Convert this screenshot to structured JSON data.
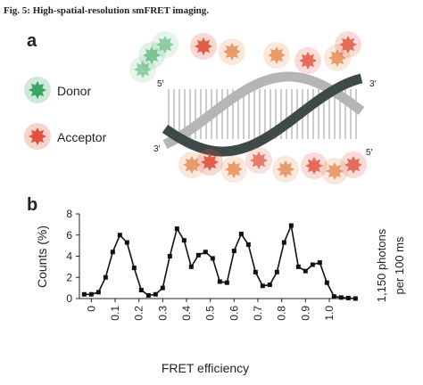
{
  "figure_title": "Fig. 5: High-spatial-resolution smFRET imaging.",
  "panel_a": {
    "label": "a",
    "legend": [
      "Donor",
      "Acceptor"
    ],
    "ends": [
      "5′",
      "3′",
      "3′",
      "5′"
    ]
  },
  "chart_data": {
    "type": "line",
    "panel_label": "b",
    "x_label": "FRET efficiency",
    "y_label": "Counts (%)",
    "side_label": [
      "1,150 photons",
      "per 100 ms"
    ],
    "color": "#111111",
    "x": [
      -0.03,
      0.0,
      0.03,
      0.06,
      0.09,
      0.12,
      0.15,
      0.18,
      0.21,
      0.24,
      0.27,
      0.3,
      0.33,
      0.36,
      0.39,
      0.42,
      0.45,
      0.48,
      0.51,
      0.54,
      0.57,
      0.6,
      0.63,
      0.66,
      0.69,
      0.72,
      0.75,
      0.78,
      0.81,
      0.84,
      0.87,
      0.9,
      0.93,
      0.96,
      0.99,
      1.02,
      1.05,
      1.08,
      1.11
    ],
    "values": [
      0.4,
      0.4,
      0.6,
      2.0,
      4.4,
      6.0,
      5.3,
      2.9,
      0.8,
      0.3,
      0.4,
      1.0,
      4.0,
      6.6,
      5.5,
      3.0,
      4.1,
      4.4,
      3.8,
      1.6,
      1.5,
      4.5,
      6.1,
      5.1,
      2.5,
      1.2,
      1.3,
      2.5,
      5.3,
      6.9,
      3.0,
      2.6,
      3.2,
      3.4,
      1.5,
      0.2,
      0.1,
      0.05,
      0.0
    ],
    "xlim": [
      -0.05,
      1.12
    ],
    "ylim": [
      0,
      8
    ],
    "xticks": [
      0,
      0.1,
      0.2,
      0.3,
      0.4,
      0.5,
      0.6,
      0.7,
      0.8,
      0.9,
      {
        "value": 1,
        "label": "1.0"
      }
    ],
    "yticks": [
      0,
      2,
      4,
      6,
      8
    ]
  }
}
